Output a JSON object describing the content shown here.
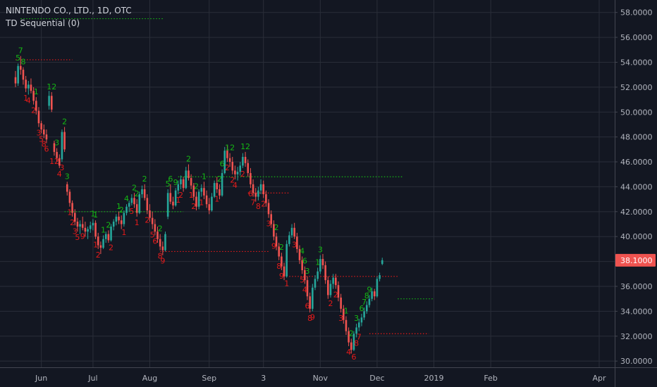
{
  "header": {
    "symbol_line": "NINTENDO CO., LTD., 1D, OTC",
    "indicator_line": "TD Sequential (0)"
  },
  "chart_data": {
    "type": "candlestick",
    "y_axis": {
      "range": [
        29.5,
        59.0
      ],
      "ticks": [
        "58.0000",
        "56.0000",
        "54.0000",
        "52.0000",
        "50.0000",
        "48.0000",
        "46.0000",
        "44.0000",
        "42.0000",
        "40.0000",
        "38.0000",
        "36.0000",
        "34.0000",
        "32.0000",
        "30.0000"
      ],
      "tick_values": [
        58,
        56,
        54,
        52,
        50,
        48,
        46,
        44,
        42,
        40,
        38,
        36,
        34,
        32,
        30
      ]
    },
    "x_axis": {
      "labels": [
        {
          "label": "Jun",
          "idx": 10
        },
        {
          "label": "Jul",
          "idx": 30
        },
        {
          "label": "Aug",
          "idx": 52
        },
        {
          "label": "Sep",
          "idx": 75
        },
        {
          "label": "3",
          "idx": 96
        },
        {
          "label": "Nov",
          "idx": 118
        },
        {
          "label": "Dec",
          "idx": 140
        },
        {
          "label": "2019",
          "idx": 162
        },
        {
          "label": "Feb",
          "idx": 184
        },
        {
          "label": "Apr",
          "idx": 226
        }
      ],
      "range": [
        -6,
        232
      ]
    },
    "last_price": "38.1000",
    "colors": {
      "up": "#26a69a",
      "down": "#ef5350",
      "background": "#131722",
      "grid": "#2a2e39",
      "text": "#b2b5be",
      "buy_count": "#14b814",
      "sell_count": "#e51a1a",
      "price_tag": "#ef5350"
    },
    "candles": [
      [
        52.8,
        53.3,
        52.0,
        52.3
      ],
      [
        52.3,
        53.9,
        52.1,
        53.7
      ],
      [
        53.7,
        54.5,
        53.0,
        53.4
      ],
      [
        53.4,
        53.6,
        52.2,
        52.6
      ],
      [
        52.6,
        52.9,
        51.6,
        51.9
      ],
      [
        51.9,
        52.5,
        51.4,
        52.2
      ],
      [
        52.2,
        52.7,
        51.5,
        51.7
      ],
      [
        51.7,
        52.0,
        50.6,
        50.9
      ],
      [
        50.9,
        51.2,
        49.8,
        50.1
      ],
      [
        50.1,
        50.4,
        48.8,
        49.1
      ],
      [
        49.1,
        49.3,
        48.3,
        48.6
      ],
      [
        48.6,
        49.0,
        47.9,
        48.2
      ],
      [
        48.2,
        48.6,
        47.5,
        47.8
      ],
      [
        50.5,
        51.7,
        50.2,
        51.3
      ],
      [
        51.3,
        51.6,
        50.0,
        50.2
      ],
      [
        47.5,
        47.7,
        46.5,
        46.8
      ],
      [
        46.8,
        47.1,
        46.0,
        46.3
      ],
      [
        46.3,
        46.6,
        45.5,
        45.7
      ],
      [
        46.2,
        48.6,
        46.0,
        48.4
      ],
      [
        48.4,
        48.8,
        46.8,
        47.0
      ],
      [
        44.2,
        44.4,
        43.3,
        43.6
      ],
      [
        43.6,
        43.8,
        42.4,
        42.7
      ],
      [
        42.7,
        42.9,
        41.6,
        41.9
      ],
      [
        41.9,
        42.2,
        40.9,
        41.2
      ],
      [
        41.2,
        41.5,
        40.4,
        40.8
      ],
      [
        40.8,
        41.3,
        40.2,
        41.0
      ],
      [
        41.0,
        41.6,
        40.5,
        40.7
      ],
      [
        40.7,
        41.2,
        40.0,
        40.4
      ],
      [
        40.4,
        40.8,
        39.8,
        40.6
      ],
      [
        40.6,
        41.2,
        40.3,
        40.9
      ],
      [
        40.9,
        41.4,
        40.5,
        41.1
      ],
      [
        41.1,
        41.3,
        39.8,
        40.0
      ],
      [
        40.0,
        40.3,
        39.0,
        39.3
      ],
      [
        39.3,
        39.6,
        38.6,
        39.1
      ],
      [
        39.1,
        40.1,
        39.0,
        39.8
      ],
      [
        39.8,
        40.4,
        39.5,
        40.2
      ],
      [
        40.2,
        40.5,
        39.5,
        39.7
      ],
      [
        39.7,
        41.0,
        39.6,
        40.8
      ],
      [
        40.8,
        41.4,
        40.5,
        41.2
      ],
      [
        41.2,
        41.8,
        40.9,
        41.6
      ],
      [
        41.6,
        42.0,
        41.0,
        41.3
      ],
      [
        41.3,
        41.7,
        40.6,
        41.0
      ],
      [
        41.0,
        42.1,
        40.8,
        41.9
      ],
      [
        41.9,
        42.6,
        41.7,
        42.4
      ],
      [
        42.4,
        42.9,
        42.0,
        42.7
      ],
      [
        42.7,
        43.4,
        42.5,
        43.1
      ],
      [
        43.1,
        43.5,
        42.3,
        42.6
      ],
      [
        42.6,
        43.0,
        41.6,
        41.9
      ],
      [
        41.9,
        43.6,
        41.8,
        43.4
      ],
      [
        43.4,
        44.1,
        43.1,
        43.8
      ],
      [
        43.8,
        44.2,
        42.9,
        43.1
      ],
      [
        43.1,
        43.4,
        41.8,
        42.1
      ],
      [
        42.1,
        42.6,
        41.2,
        41.5
      ],
      [
        41.5,
        42.0,
        40.6,
        41.0
      ],
      [
        41.0,
        41.4,
        40.1,
        40.4
      ],
      [
        40.4,
        40.8,
        39.5,
        39.8
      ],
      [
        39.8,
        40.2,
        38.9,
        39.2
      ],
      [
        39.2,
        39.6,
        38.5,
        38.9
      ],
      [
        38.9,
        40.4,
        38.8,
        40.2
      ],
      [
        41.6,
        43.8,
        41.4,
        43.5
      ],
      [
        43.5,
        44.2,
        42.6,
        42.8
      ],
      [
        42.8,
        43.2,
        42.2,
        42.5
      ],
      [
        42.5,
        43.9,
        42.4,
        43.7
      ],
      [
        43.7,
        44.5,
        43.4,
        44.2
      ],
      [
        44.2,
        44.9,
        43.8,
        44.6
      ],
      [
        44.6,
        44.8,
        43.6,
        43.9
      ],
      [
        43.9,
        45.6,
        43.8,
        45.3
      ],
      [
        45.3,
        45.8,
        44.5,
        44.7
      ],
      [
        44.7,
        45.0,
        43.8,
        44.1
      ],
      [
        44.1,
        44.3,
        42.9,
        43.2
      ],
      [
        43.2,
        43.6,
        42.1,
        42.4
      ],
      [
        42.4,
        43.8,
        42.2,
        43.6
      ],
      [
        43.6,
        44.2,
        43.2,
        43.9
      ],
      [
        43.9,
        44.4,
        43.0,
        43.3
      ],
      [
        43.3,
        43.7,
        42.3,
        42.6
      ],
      [
        42.6,
        43.1,
        41.8,
        42.1
      ],
      [
        42.1,
        43.5,
        42.0,
        43.2
      ],
      [
        43.2,
        44.5,
        43.1,
        44.3
      ],
      [
        44.3,
        44.8,
        43.5,
        43.8
      ],
      [
        43.8,
        44.2,
        43.0,
        43.3
      ],
      [
        43.3,
        45.4,
        43.2,
        45.1
      ],
      [
        45.1,
        47.2,
        45.0,
        46.9
      ],
      [
        46.9,
        47.3,
        46.0,
        46.3
      ],
      [
        46.3,
        46.7,
        45.6,
        46.0
      ],
      [
        46.0,
        46.4,
        45.0,
        45.3
      ],
      [
        45.3,
        45.7,
        44.6,
        45.0
      ],
      [
        45.0,
        45.6,
        44.5,
        45.2
      ],
      [
        45.2,
        46.0,
        44.9,
        45.7
      ],
      [
        45.7,
        46.7,
        45.5,
        46.4
      ],
      [
        46.4,
        46.8,
        45.6,
        45.9
      ],
      [
        45.9,
        46.2,
        44.8,
        45.1
      ],
      [
        45.1,
        45.5,
        43.9,
        44.2
      ],
      [
        44.2,
        44.6,
        43.2,
        43.5
      ],
      [
        43.5,
        43.9,
        42.8,
        43.2
      ],
      [
        43.2,
        44.0,
        42.9,
        43.7
      ],
      [
        43.7,
        44.6,
        43.4,
        44.2
      ],
      [
        44.2,
        44.5,
        43.1,
        43.4
      ],
      [
        43.4,
        43.7,
        42.4,
        42.7
      ],
      [
        42.7,
        43.0,
        41.5,
        41.8
      ],
      [
        41.8,
        42.1,
        40.7,
        41.0
      ],
      [
        41.0,
        41.3,
        39.7,
        40.0
      ],
      [
        40.0,
        40.3,
        38.9,
        39.2
      ],
      [
        39.2,
        39.5,
        38.1,
        38.4
      ],
      [
        38.4,
        38.7,
        37.3,
        37.6
      ],
      [
        37.6,
        37.9,
        36.5,
        36.8
      ],
      [
        36.8,
        39.7,
        36.7,
        39.4
      ],
      [
        39.4,
        40.4,
        39.2,
        40.1
      ],
      [
        40.1,
        41.0,
        39.9,
        40.7
      ],
      [
        40.7,
        41.1,
        39.8,
        40.0
      ],
      [
        40.0,
        40.3,
        38.7,
        39.0
      ],
      [
        39.0,
        39.3,
        37.8,
        38.1
      ],
      [
        38.1,
        38.4,
        37.0,
        37.3
      ],
      [
        37.3,
        37.6,
        36.2,
        36.5
      ],
      [
        36.5,
        36.8,
        34.9,
        35.2
      ],
      [
        35.2,
        35.5,
        33.9,
        34.2
      ],
      [
        34.2,
        36.2,
        34.0,
        35.9
      ],
      [
        35.9,
        36.9,
        35.7,
        36.6
      ],
      [
        36.6,
        37.5,
        36.4,
        37.2
      ],
      [
        37.2,
        38.5,
        37.0,
        38.2
      ],
      [
        38.2,
        38.6,
        37.4,
        37.7
      ],
      [
        37.7,
        38.0,
        36.2,
        36.5
      ],
      [
        36.5,
        36.8,
        35.0,
        35.3
      ],
      [
        35.3,
        36.5,
        35.1,
        36.2
      ],
      [
        36.2,
        37.0,
        35.8,
        36.7
      ],
      [
        36.7,
        37.0,
        35.8,
        36.1
      ],
      [
        36.1,
        36.4,
        34.8,
        35.1
      ],
      [
        35.1,
        35.4,
        33.9,
        34.2
      ],
      [
        34.2,
        34.5,
        33.0,
        33.3
      ],
      [
        33.3,
        33.6,
        32.1,
        32.4
      ],
      [
        32.4,
        32.7,
        31.2,
        31.5
      ],
      [
        31.5,
        31.8,
        30.6,
        30.9
      ],
      [
        30.9,
        32.4,
        30.8,
        32.2
      ],
      [
        32.2,
        33.0,
        31.9,
        32.7
      ],
      [
        32.7,
        33.4,
        32.4,
        33.1
      ],
      [
        33.1,
        33.8,
        32.8,
        33.5
      ],
      [
        33.5,
        34.3,
        33.3,
        34.0
      ],
      [
        34.0,
        34.8,
        33.8,
        34.5
      ],
      [
        34.5,
        35.3,
        34.3,
        35.0
      ],
      [
        35.0,
        35.9,
        34.8,
        35.6
      ],
      [
        35.6,
        35.8,
        34.9,
        35.2
      ],
      [
        35.2,
        36.8,
        35.1,
        36.6
      ],
      [
        36.6,
        37.1,
        36.4,
        36.9
      ],
      [
        37.8,
        38.3,
        37.7,
        38.1
      ]
    ],
    "buy_labels": [
      {
        "idx": 1,
        "label": "5"
      },
      {
        "idx": 2,
        "label": "7"
      },
      {
        "idx": 3,
        "label": "8"
      },
      {
        "idx": 8,
        "label": "1"
      },
      {
        "idx": 14,
        "label": "12"
      },
      {
        "idx": 16,
        "label": "3"
      },
      {
        "idx": 19,
        "label": "2"
      },
      {
        "idx": 20,
        "label": "3"
      },
      {
        "idx": 30,
        "label": "1"
      },
      {
        "idx": 31,
        "label": "1"
      },
      {
        "idx": 34,
        "label": "1"
      },
      {
        "idx": 36,
        "label": "2"
      },
      {
        "idx": 40,
        "label": "1"
      },
      {
        "idx": 41,
        "label": "2"
      },
      {
        "idx": 43,
        "label": "4"
      },
      {
        "idx": 46,
        "label": "2"
      },
      {
        "idx": 47,
        "label": "2"
      },
      {
        "idx": 50,
        "label": "2"
      },
      {
        "idx": 56,
        "label": "2"
      },
      {
        "idx": 59,
        "label": "5"
      },
      {
        "idx": 60,
        "label": "6"
      },
      {
        "idx": 62,
        "label": "9"
      },
      {
        "idx": 67,
        "label": "2"
      },
      {
        "idx": 70,
        "label": "2"
      },
      {
        "idx": 73,
        "label": "1"
      },
      {
        "idx": 79,
        "label": "2"
      },
      {
        "idx": 80,
        "label": "6"
      },
      {
        "idx": 83,
        "label": "12"
      },
      {
        "idx": 89,
        "label": "12"
      },
      {
        "idx": 101,
        "label": "2"
      },
      {
        "idx": 103,
        "label": "2"
      },
      {
        "idx": 111,
        "label": "4"
      },
      {
        "idx": 112,
        "label": "6"
      },
      {
        "idx": 113,
        "label": "3"
      },
      {
        "idx": 117,
        "label": "1"
      },
      {
        "idx": 118,
        "label": "3"
      },
      {
        "idx": 128,
        "label": "1"
      },
      {
        "idx": 130,
        "label": "2"
      },
      {
        "idx": 132,
        "label": "3"
      },
      {
        "idx": 134,
        "label": "6"
      },
      {
        "idx": 135,
        "label": "7"
      },
      {
        "idx": 136,
        "label": "8"
      },
      {
        "idx": 137,
        "label": "9"
      }
    ],
    "sell_labels": [
      {
        "idx": 4,
        "label": "1"
      },
      {
        "idx": 5,
        "label": "4"
      },
      {
        "idx": 7,
        "label": "2"
      },
      {
        "idx": 9,
        "label": "3"
      },
      {
        "idx": 10,
        "label": "5"
      },
      {
        "idx": 11,
        "label": "8"
      },
      {
        "idx": 12,
        "label": "6"
      },
      {
        "idx": 15,
        "label": "12"
      },
      {
        "idx": 17,
        "label": "4"
      },
      {
        "idx": 18,
        "label": "3"
      },
      {
        "idx": 21,
        "label": "1"
      },
      {
        "idx": 22,
        "label": "2"
      },
      {
        "idx": 23,
        "label": "3"
      },
      {
        "idx": 24,
        "label": "5"
      },
      {
        "idx": 26,
        "label": "9"
      },
      {
        "idx": 31,
        "label": "1"
      },
      {
        "idx": 32,
        "label": "2"
      },
      {
        "idx": 37,
        "label": "2"
      },
      {
        "idx": 42,
        "label": "1"
      },
      {
        "idx": 45,
        "label": "5"
      },
      {
        "idx": 47,
        "label": "1"
      },
      {
        "idx": 51,
        "label": "2"
      },
      {
        "idx": 53,
        "label": "5"
      },
      {
        "idx": 54,
        "label": "6"
      },
      {
        "idx": 56,
        "label": "8"
      },
      {
        "idx": 57,
        "label": "9"
      },
      {
        "idx": 63,
        "label": "1"
      },
      {
        "idx": 64,
        "label": "2"
      },
      {
        "idx": 68,
        "label": "1"
      },
      {
        "idx": 69,
        "label": "2"
      },
      {
        "idx": 72,
        "label": "1"
      },
      {
        "idx": 78,
        "label": "1"
      },
      {
        "idx": 82,
        "label": "2"
      },
      {
        "idx": 84,
        "label": "2"
      },
      {
        "idx": 85,
        "label": "4"
      },
      {
        "idx": 88,
        "label": "2"
      },
      {
        "idx": 91,
        "label": "6"
      },
      {
        "idx": 92,
        "label": "7"
      },
      {
        "idx": 94,
        "label": "8"
      },
      {
        "idx": 96,
        "label": "2"
      },
      {
        "idx": 98,
        "label": "3"
      },
      {
        "idx": 100,
        "label": "9"
      },
      {
        "idx": 102,
        "label": "8"
      },
      {
        "idx": 103,
        "label": "9"
      },
      {
        "idx": 105,
        "label": "1"
      },
      {
        "idx": 108,
        "label": "3"
      },
      {
        "idx": 111,
        "label": "5"
      },
      {
        "idx": 112,
        "label": "4"
      },
      {
        "idx": 113,
        "label": "6"
      },
      {
        "idx": 114,
        "label": "8"
      },
      {
        "idx": 115,
        "label": "9"
      },
      {
        "idx": 122,
        "label": "2"
      },
      {
        "idx": 124,
        "label": "2"
      },
      {
        "idx": 126,
        "label": "3"
      },
      {
        "idx": 129,
        "label": "4"
      },
      {
        "idx": 131,
        "label": "6"
      },
      {
        "idx": 132,
        "label": "8"
      },
      {
        "idx": 133,
        "label": "7"
      }
    ],
    "support_resistance": [
      {
        "kind": "buy",
        "y": 57.5,
        "from": 2,
        "to": 57
      },
      {
        "kind": "sell",
        "y": 54.2,
        "from": 0,
        "to": 22
      },
      {
        "kind": "buy",
        "y": 44.8,
        "from": 63,
        "to": 150
      },
      {
        "kind": "sell",
        "y": 43.5,
        "from": 90,
        "to": 106
      },
      {
        "kind": "buy",
        "y": 42.0,
        "from": 19,
        "to": 65
      },
      {
        "kind": "sell",
        "y": 38.8,
        "from": 56,
        "to": 98
      },
      {
        "kind": "sell",
        "y": 36.8,
        "from": 106,
        "to": 148
      },
      {
        "kind": "sell",
        "y": 32.2,
        "from": 137,
        "to": 160
      },
      {
        "kind": "buy",
        "y": 35.0,
        "from": 148,
        "to": 162
      }
    ]
  }
}
